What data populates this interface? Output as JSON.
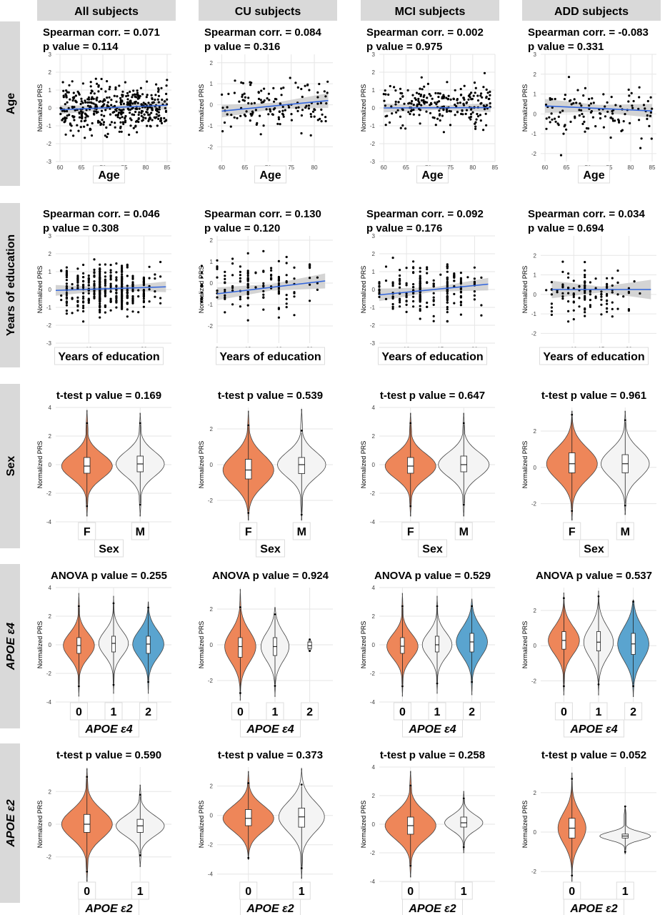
{
  "figure": {
    "column_headers": [
      "All subjects",
      "CU subjects",
      "MCI subjects",
      "ADD subjects"
    ],
    "row_headers": [
      {
        "text": "Age",
        "italic": false
      },
      {
        "text": "Years of education",
        "italic": false
      },
      {
        "text": "Sex",
        "italic": false
      },
      {
        "text": "APOE ε4",
        "italic": true
      },
      {
        "text": "APOE ε2",
        "italic": true
      }
    ],
    "y_axis_label": "Normalized PRS",
    "colors": {
      "header_bg": "#d9d9d9",
      "orange": "#ee8659",
      "blue": "#5aa4cf",
      "white_violin": "#f4f4f4",
      "fit_line": "#3366dd",
      "ci_band": "#cccccc",
      "grid": "#e6e6e6"
    }
  },
  "chart_data": [
    {
      "type": "scatter",
      "row": 0,
      "col": 0,
      "title_line1": "Spearman corr. = 0.071",
      "title_line2": "p value = 0.114",
      "xlabel": "Age",
      "xlim": [
        59,
        86
      ],
      "ylim": [
        -3,
        3
      ],
      "xticks": [
        60,
        65,
        70,
        75,
        80,
        85
      ],
      "yticks": [
        -3,
        -2,
        -1,
        0,
        1,
        2,
        3
      ],
      "fit": {
        "x0": 60,
        "y0": -0.1,
        "x1": 85,
        "y1": 0.15
      },
      "ci": [
        0.25,
        0.1,
        0.25
      ],
      "n": 420,
      "seed": 11
    },
    {
      "type": "scatter",
      "row": 0,
      "col": 1,
      "title_line1": "Spearman corr. = 0.084",
      "title_line2": "p value = 0.316",
      "xlabel": "Age",
      "xlim": [
        59,
        84
      ],
      "ylim": [
        -2.7,
        2.4
      ],
      "xticks": [
        60,
        65,
        70,
        75,
        80
      ],
      "yticks": [
        -2,
        -1,
        0,
        1,
        2
      ],
      "fit": {
        "x0": 60,
        "y0": -0.3,
        "x1": 83,
        "y1": 0.2
      },
      "ci": [
        0.3,
        0.15,
        0.35
      ],
      "n": 140,
      "seed": 23
    },
    {
      "type": "scatter",
      "row": 0,
      "col": 2,
      "title_line1": "Spearman corr. = 0.002",
      "title_line2": "p value = 0.975",
      "xlabel": "Age",
      "xlim": [
        59,
        85
      ],
      "ylim": [
        -3,
        3
      ],
      "xticks": [
        60,
        65,
        70,
        75,
        80,
        85
      ],
      "yticks": [
        -3,
        -2,
        -1,
        0,
        1,
        2,
        3
      ],
      "fit": {
        "x0": 60,
        "y0": 0.0,
        "x1": 84,
        "y1": 0.02
      },
      "ci": [
        0.25,
        0.12,
        0.25
      ],
      "n": 220,
      "seed": 37
    },
    {
      "type": "scatter",
      "row": 0,
      "col": 3,
      "title_line1": "Spearman corr. = -0.083",
      "title_line2": "p value = 0.331",
      "xlabel": "Age",
      "xlim": [
        59,
        86
      ],
      "ylim": [
        -2.4,
        3
      ],
      "xticks": [
        60,
        65,
        70,
        75,
        80,
        85
      ],
      "yticks": [
        -2,
        -1,
        0,
        1,
        2,
        3
      ],
      "fit": {
        "x0": 60,
        "y0": 0.4,
        "x1": 85,
        "y1": 0.15
      },
      "ci": [
        0.35,
        0.18,
        0.35
      ],
      "n": 120,
      "seed": 41
    },
    {
      "type": "scatter",
      "row": 1,
      "col": 0,
      "title_line1": "Spearman corr. = 0.046",
      "title_line2": "p value = 0.308",
      "xlabel": "Years of education",
      "xlim": [
        4,
        25
      ],
      "ylim": [
        -3,
        3
      ],
      "xticks": [
        10,
        20
      ],
      "yticks": [
        -3,
        -2,
        -1,
        0,
        1,
        2,
        3
      ],
      "fit": {
        "x0": 4,
        "y0": -0.05,
        "x1": 24,
        "y1": 0.15
      },
      "ci": [
        0.3,
        0.08,
        0.3
      ],
      "n": 420,
      "seed": 53,
      "xdiscrete": true
    },
    {
      "type": "scatter",
      "row": 1,
      "col": 1,
      "title_line1": "Spearman corr. = 0.130",
      "title_line2": "p value = 0.120",
      "xlabel": "Years of education",
      "xlim": [
        8,
        23
      ],
      "ylim": [
        -2.8,
        2.2
      ],
      "xticks": [
        8,
        12,
        16,
        20
      ],
      "yticks": [
        -2,
        -1,
        0,
        1,
        2
      ],
      "fit": {
        "x0": 8,
        "y0": -0.5,
        "x1": 22,
        "y1": 0.1
      },
      "ci": [
        0.3,
        0.15,
        0.35
      ],
      "n": 140,
      "seed": 67,
      "xdiscrete": true
    },
    {
      "type": "scatter",
      "row": 1,
      "col": 2,
      "title_line1": "Spearman corr. = 0.092",
      "title_line2": "p value = 0.176",
      "xlabel": "Years of education",
      "xlim": [
        6,
        23
      ],
      "ylim": [
        -3,
        3
      ],
      "xticks": [
        10,
        15,
        20
      ],
      "yticks": [
        -3,
        -2,
        -1,
        0,
        1,
        2,
        3
      ],
      "fit": {
        "x0": 6,
        "y0": -0.3,
        "x1": 22,
        "y1": 0.3
      },
      "ci": [
        0.35,
        0.12,
        0.35
      ],
      "n": 220,
      "seed": 71,
      "xdiscrete": true
    },
    {
      "type": "scatter",
      "row": 1,
      "col": 3,
      "title_line1": "Spearman corr. = 0.034",
      "title_line2": "p value = 0.694",
      "xlabel": "Years of education",
      "xlim": [
        4,
        25
      ],
      "ylim": [
        -2.5,
        3
      ],
      "xticks": [
        10,
        15,
        20
      ],
      "yticks": [
        -2,
        -1,
        0,
        1,
        2
      ],
      "fit": {
        "x0": 6,
        "y0": 0.25,
        "x1": 24,
        "y1": 0.25
      },
      "ci": [
        0.45,
        0.15,
        0.5
      ],
      "n": 120,
      "seed": 83,
      "xdiscrete": true
    },
    {
      "type": "violin",
      "row": 2,
      "col": 0,
      "title": "t-test p value = 0.169",
      "xlabel": "Sex",
      "categories": [
        "F",
        "M"
      ],
      "fills": [
        "orange",
        "white"
      ],
      "ylim": [
        -4,
        4
      ],
      "yticks": [
        -4,
        -2,
        0,
        2,
        4
      ],
      "groups": [
        {
          "median": -0.1,
          "q1": -0.6,
          "q3": 0.5,
          "lo": -2.8,
          "hi": 2.8,
          "vmin": -3.6,
          "vmax": 3.8,
          "w": 1.0
        },
        {
          "median": 0.05,
          "q1": -0.5,
          "q3": 0.6,
          "lo": -2.7,
          "hi": 2.8,
          "vmin": -3.6,
          "vmax": 3.6,
          "w": 0.95
        }
      ]
    },
    {
      "type": "violin",
      "row": 2,
      "col": 1,
      "title": "t-test p value = 0.539",
      "xlabel": "Sex",
      "categories": [
        "F",
        "M"
      ],
      "fills": [
        "orange",
        "white"
      ],
      "ylim": [
        -3.2,
        3.2
      ],
      "yticks": [
        -2,
        0,
        2
      ],
      "groups": [
        {
          "median": -0.3,
          "q1": -0.8,
          "q3": 0.3,
          "lo": -2.6,
          "hi": 2.1,
          "vmin": -3.1,
          "vmax": 3.0,
          "w": 1.0
        },
        {
          "median": 0.0,
          "q1": -0.5,
          "q3": 0.4,
          "lo": -2.7,
          "hi": 1.8,
          "vmin": -3.1,
          "vmax": 3.1,
          "w": 0.95
        }
      ]
    },
    {
      "type": "violin",
      "row": 2,
      "col": 2,
      "title": "t-test p value = 0.647",
      "xlabel": "Sex",
      "categories": [
        "F",
        "M"
      ],
      "fills": [
        "orange",
        "white"
      ],
      "ylim": [
        -4,
        4
      ],
      "yticks": [
        -4,
        -2,
        0,
        2,
        4
      ],
      "groups": [
        {
          "median": -0.1,
          "q1": -0.6,
          "q3": 0.5,
          "lo": -2.8,
          "hi": 2.8,
          "vmin": -3.6,
          "vmax": 3.6,
          "w": 1.0
        },
        {
          "median": 0.0,
          "q1": -0.5,
          "q3": 0.6,
          "lo": -2.7,
          "hi": 2.8,
          "vmin": -3.6,
          "vmax": 3.6,
          "w": 1.0
        }
      ]
    },
    {
      "type": "violin",
      "row": 2,
      "col": 3,
      "title": "t-test p value = 0.961",
      "xlabel": "Sex",
      "categories": [
        "F",
        "M"
      ],
      "fills": [
        "orange",
        "white"
      ],
      "ylim": [
        -3,
        3.3
      ],
      "yticks": [
        -2,
        0,
        2
      ],
      "groups": [
        {
          "median": 0.2,
          "q1": -0.3,
          "q3": 0.8,
          "lo": -2.3,
          "hi": 2.8,
          "vmin": -2.9,
          "vmax": 3.1,
          "w": 1.0
        },
        {
          "median": 0.2,
          "q1": -0.3,
          "q3": 0.7,
          "lo": -2.0,
          "hi": 2.5,
          "vmin": -2.6,
          "vmax": 3.1,
          "w": 0.95
        }
      ]
    },
    {
      "type": "violin",
      "row": 3,
      "col": 0,
      "title": "ANOVA p value = 0.255",
      "xlabel": "APOE ε4",
      "categories": [
        "0",
        "1",
        "2"
      ],
      "fills": [
        "orange",
        "white",
        "blue"
      ],
      "ylim": [
        -4,
        4
      ],
      "yticks": [
        -4,
        -2,
        0,
        2,
        4
      ],
      "groups": [
        {
          "median": -0.05,
          "q1": -0.6,
          "q3": 0.5,
          "lo": -2.8,
          "hi": 2.6,
          "vmin": -3.6,
          "vmax": 3.6,
          "w": 1.0
        },
        {
          "median": 0.1,
          "q1": -0.5,
          "q3": 0.6,
          "lo": -2.7,
          "hi": 2.8,
          "vmin": -3.4,
          "vmax": 3.4,
          "w": 0.95
        },
        {
          "median": 0.05,
          "q1": -0.6,
          "q3": 0.6,
          "lo": -2.5,
          "hi": 2.5,
          "vmin": -3.4,
          "vmax": 3.0,
          "w": 1.0
        }
      ]
    },
    {
      "type": "violin",
      "row": 3,
      "col": 1,
      "title": "ANOVA p value = 0.924",
      "xlabel": "APOE ε4",
      "categories": [
        "0",
        "1",
        "2"
      ],
      "fills": [
        "orange",
        "white",
        "white"
      ],
      "ylim": [
        -3.2,
        3.2
      ],
      "yticks": [
        -2,
        0,
        2
      ],
      "groups": [
        {
          "median": -0.1,
          "q1": -0.7,
          "q3": 0.4,
          "lo": -2.6,
          "hi": 2.0,
          "vmin": -3.1,
          "vmax": 3.1,
          "w": 1.0
        },
        {
          "median": -0.1,
          "q1": -0.6,
          "q3": 0.4,
          "lo": -2.2,
          "hi": 1.6,
          "vmin": -2.9,
          "vmax": 2.1,
          "w": 0.9
        },
        {
          "median": -0.05,
          "q1": -0.2,
          "q3": 0.15,
          "lo": -0.25,
          "hi": 0.2,
          "vmin": -0.3,
          "vmax": 0.25,
          "w": 0.12
        }
      ]
    },
    {
      "type": "violin",
      "row": 3,
      "col": 2,
      "title": "ANOVA p value = 0.529",
      "xlabel": "APOE ε4",
      "categories": [
        "0",
        "1",
        "2"
      ],
      "fills": [
        "orange",
        "white",
        "blue"
      ],
      "ylim": [
        -4,
        4
      ],
      "yticks": [
        -4,
        -2,
        0,
        2,
        4
      ],
      "groups": [
        {
          "median": -0.1,
          "q1": -0.6,
          "q3": 0.5,
          "lo": -2.8,
          "hi": 2.6,
          "vmin": -3.6,
          "vmax": 3.6,
          "w": 1.0
        },
        {
          "median": 0.0,
          "q1": -0.5,
          "q3": 0.6,
          "lo": -2.6,
          "hi": 2.6,
          "vmin": -3.4,
          "vmax": 3.4,
          "w": 0.95
        },
        {
          "median": 0.2,
          "q1": -0.5,
          "q3": 0.8,
          "lo": -2.5,
          "hi": 2.6,
          "vmin": -3.5,
          "vmax": 3.2,
          "w": 1.0
        }
      ]
    },
    {
      "type": "violin",
      "row": 3,
      "col": 3,
      "title": "ANOVA p value = 0.537",
      "xlabel": "APOE ε4",
      "categories": [
        "0",
        "1",
        "2"
      ],
      "fills": [
        "orange",
        "white",
        "blue"
      ],
      "ylim": [
        -3.2,
        3.3
      ],
      "yticks": [
        -2,
        0,
        2
      ],
      "groups": [
        {
          "median": 0.3,
          "q1": -0.2,
          "q3": 0.8,
          "lo": -2.2,
          "hi": 2.6,
          "vmin": -2.8,
          "vmax": 3.0,
          "w": 1.0
        },
        {
          "median": 0.2,
          "q1": -0.3,
          "q3": 0.8,
          "lo": -2.1,
          "hi": 2.7,
          "vmin": -2.8,
          "vmax": 3.1,
          "w": 0.95
        },
        {
          "median": 0.1,
          "q1": -0.5,
          "q3": 0.7,
          "lo": -2.2,
          "hi": 2.4,
          "vmin": -2.9,
          "vmax": 2.6,
          "w": 1.0
        }
      ]
    },
    {
      "type": "violin",
      "row": 4,
      "col": 0,
      "title": "t-test p value = 0.590",
      "xlabel": "APOE ε2",
      "categories": [
        "0",
        "1"
      ],
      "fills": [
        "orange",
        "white"
      ],
      "ylim": [
        -3.5,
        3.5
      ],
      "yticks": [
        -2,
        0,
        2
      ],
      "groups": [
        {
          "median": 0.0,
          "q1": -0.5,
          "q3": 0.6,
          "lo": -2.8,
          "hi": 2.8,
          "vmin": -3.5,
          "vmax": 3.4,
          "w": 1.0
        },
        {
          "median": -0.1,
          "q1": -0.5,
          "q3": 0.3,
          "lo": -1.8,
          "hi": 1.7,
          "vmin": -2.6,
          "vmax": 2.4,
          "w": 0.95
        }
      ]
    },
    {
      "type": "violin",
      "row": 4,
      "col": 1,
      "title": "t-test p value = 0.373",
      "xlabel": "APOE ε2",
      "categories": [
        "0",
        "1"
      ],
      "fills": [
        "orange",
        "white"
      ],
      "ylim": [
        -4.5,
        3.3
      ],
      "yticks": [
        -4,
        -2,
        0,
        2
      ],
      "groups": [
        {
          "median": -0.2,
          "q1": -0.7,
          "q3": 0.4,
          "lo": -2.8,
          "hi": 2.1,
          "vmin": -3.0,
          "vmax": 3.0,
          "w": 1.0
        },
        {
          "median": -0.1,
          "q1": -0.8,
          "q3": 0.5,
          "lo": -3.5,
          "hi": 2.0,
          "vmin": -4.3,
          "vmax": 3.2,
          "w": 0.9
        }
      ]
    },
    {
      "type": "violin",
      "row": 4,
      "col": 2,
      "title": "t-test p value = 0.258",
      "xlabel": "APOE ε2",
      "categories": [
        "0",
        "1"
      ],
      "fills": [
        "orange",
        "white"
      ],
      "ylim": [
        -4,
        4
      ],
      "yticks": [
        -4,
        -2,
        0,
        2,
        4
      ],
      "groups": [
        {
          "median": -0.1,
          "q1": -0.7,
          "q3": 0.5,
          "lo": -2.8,
          "hi": 2.6,
          "vmin": -3.7,
          "vmax": 3.7,
          "w": 1.0
        },
        {
          "median": 0.1,
          "q1": -0.2,
          "q3": 0.5,
          "lo": -1.5,
          "hi": 1.7,
          "vmin": -2.0,
          "vmax": 2.3,
          "w": 0.75
        }
      ]
    },
    {
      "type": "violin",
      "row": 4,
      "col": 3,
      "title": "t-test p value = 0.052",
      "xlabel": "APOE ε2",
      "categories": [
        "0",
        "1"
      ],
      "fills": [
        "orange",
        "white"
      ],
      "ylim": [
        -2.5,
        3.3
      ],
      "yticks": [
        -2,
        0,
        2
      ],
      "groups": [
        {
          "median": 0.2,
          "q1": -0.3,
          "q3": 0.7,
          "lo": -2.1,
          "hi": 2.6,
          "vmin": -2.5,
          "vmax": 3.0,
          "w": 0.55
        },
        {
          "median": -0.2,
          "q1": -0.3,
          "q3": -0.1,
          "lo": -0.9,
          "hi": 1.2,
          "vmin": -1.1,
          "vmax": 1.3,
          "w": 1.0
        }
      ]
    }
  ]
}
